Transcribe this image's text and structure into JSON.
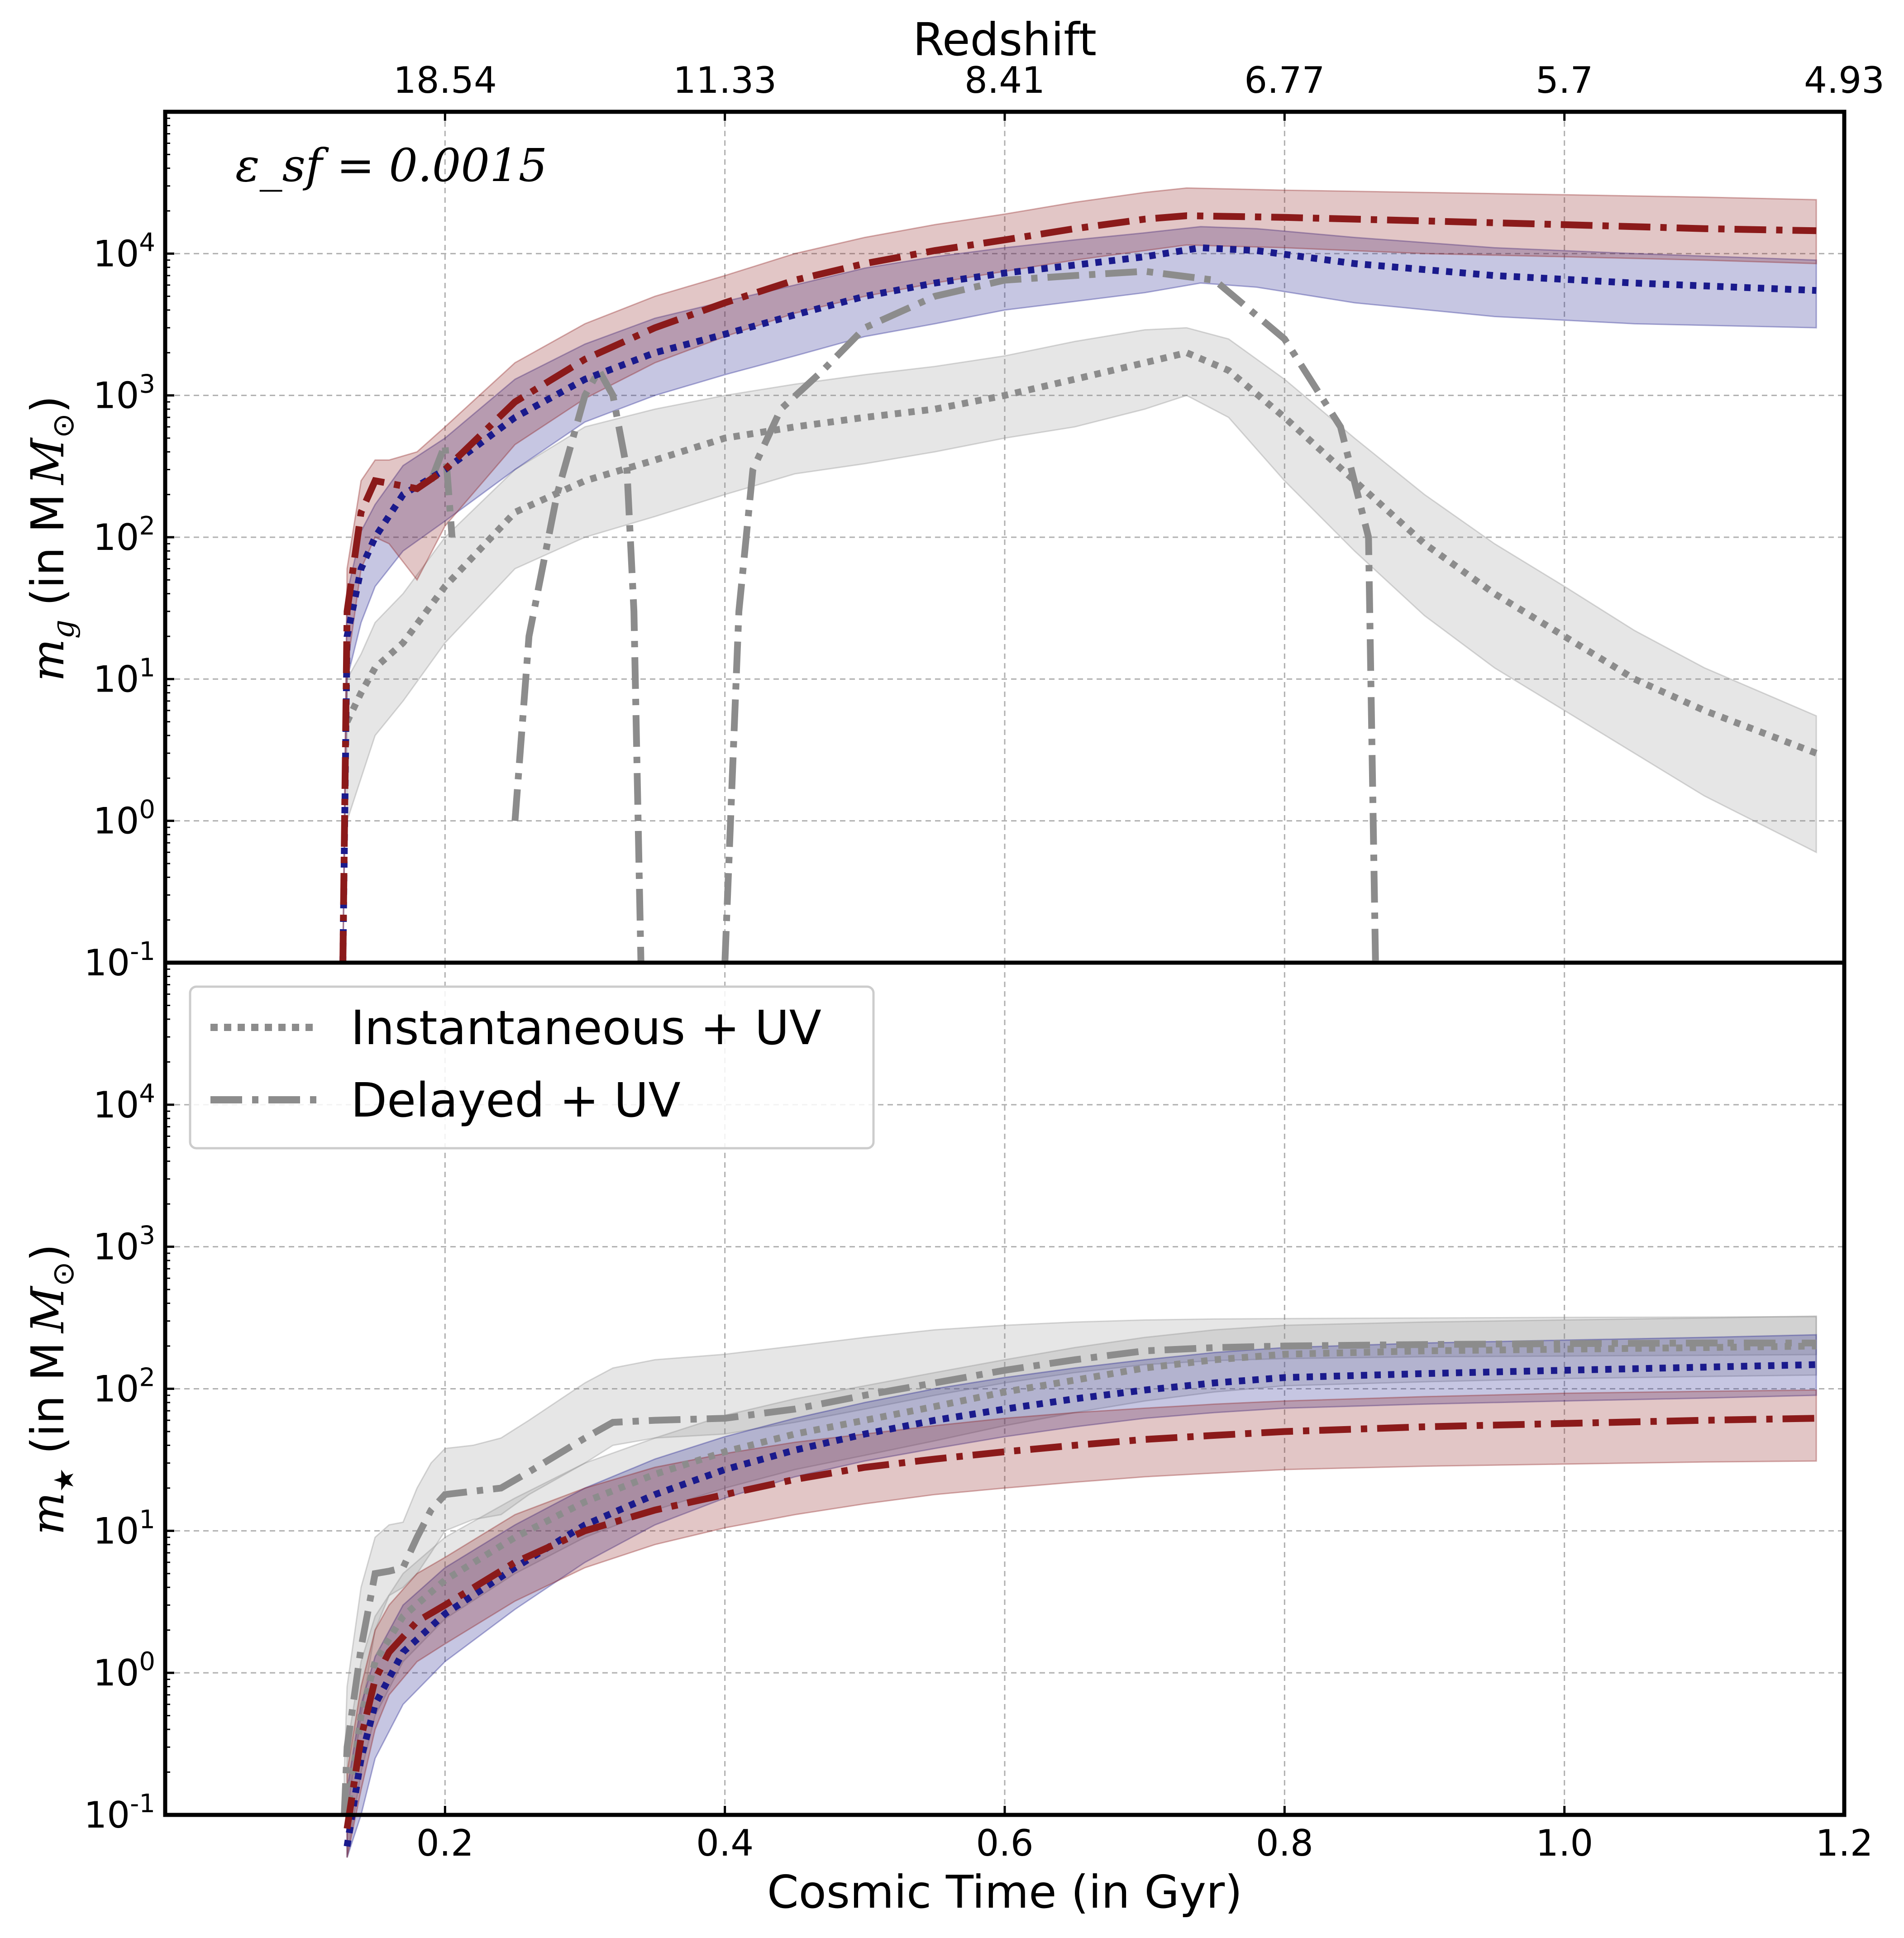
{
  "chart_data": {
    "type": "line",
    "annotation": "ε_sf = 0.0015",
    "xlabel": "Cosmic Time (in Gyr)",
    "top_xlabel": "Redshift",
    "xlim": [
      0.0,
      1.2
    ],
    "x_ticks": [
      0.2,
      0.4,
      0.6,
      0.8,
      1.0,
      1.2
    ],
    "x_tick_labels": [
      "0.2",
      "0.4",
      "0.6",
      "0.8",
      "1.0",
      "1.2"
    ],
    "top_ticks": [
      0.2,
      0.4,
      0.6,
      0.8,
      1.0,
      1.2
    ],
    "top_tick_labels": [
      "18.54",
      "11.33",
      "8.41",
      "6.77",
      "5.7",
      "4.93"
    ],
    "ylim": [
      0.1,
      100000
    ],
    "y_scale": "log",
    "y_ticks": [
      0.1,
      1,
      10,
      100,
      1000,
      10000
    ],
    "y_tick_base": "10",
    "y_tick_exponents": [
      "-1",
      "0",
      "1",
      "2",
      "3",
      "4"
    ],
    "legend": [
      {
        "label": "Instantaneous + UV",
        "style": "dotted",
        "color": "#8c8c8c"
      },
      {
        "label": "Delayed + UV",
        "style": "dashdot",
        "color": "#8c8c8c"
      }
    ],
    "panels": [
      {
        "id": "gas",
        "ylabel_symbol": "m",
        "ylabel_sub": "g",
        "ylabel_unit": "(in M",
        "ylabel_unit_sub": "⊙",
        "ylabel_close": ")",
        "series": [
          {
            "name": "Instantaneous + UV (grey)",
            "color": "#8c8c8c",
            "style": "dotted",
            "x": [
              0.13,
              0.14,
              0.15,
              0.17,
              0.2,
              0.25,
              0.3,
              0.35,
              0.4,
              0.45,
              0.5,
              0.55,
              0.6,
              0.65,
              0.7,
              0.73,
              0.76,
              0.8,
              0.85,
              0.9,
              0.95,
              1.0,
              1.05,
              1.1,
              1.18
            ],
            "y": [
              5,
              8,
              12,
              18,
              45,
              150,
              250,
              350,
              500,
              600,
              700,
              800,
              1000,
              1300,
              1700,
              2000,
              1500,
              700,
              250,
              90,
              40,
              20,
              10,
              6,
              3
            ],
            "lo": [
              1,
              2,
              4,
              7,
              18,
              60,
              100,
              140,
              200,
              280,
              330,
              400,
              500,
              600,
              800,
              1000,
              700,
              250,
              80,
              28,
              12,
              6,
              3,
              1.5,
              0.6
            ],
            "hi": [
              10,
              15,
              25,
              40,
              100,
              300,
              600,
              800,
              1000,
              1200,
              1400,
              1600,
              1900,
              2400,
              2900,
              3000,
              2500,
              1300,
              500,
              200,
              90,
              45,
              22,
              12,
              5.5
            ]
          },
          {
            "name": "Delayed + UV (grey)",
            "color": "#8c8c8c",
            "style": "dashdot",
            "x": [
              0.13,
              0.145,
              0.15,
              0.16,
              0.165,
              0.17,
              0.18,
              0.19,
              0.2,
              0.205,
              0.21,
              0.22,
              0.23,
              0.24,
              0.245,
              0.25,
              0.26,
              0.28,
              0.3,
              0.31,
              0.32,
              0.33,
              0.335,
              0.34,
              0.35,
              0.38,
              0.395,
              0.4,
              0.41,
              0.42,
              0.44,
              0.47,
              0.5,
              0.55,
              0.6,
              0.65,
              0.7,
              0.75,
              0.8,
              0.84,
              0.86,
              0.865,
              0.87,
              0.9
            ],
            "y": [
              null,
              null,
              20,
              null,
              null,
              80,
              null,
              250,
              450,
              100,
              null,
              null,
              null,
              null,
              null,
              1,
              20,
              200,
              1000,
              1500,
              1000,
              300,
              30,
              0.1,
              null,
              null,
              null,
              0.1,
              30,
              300,
              800,
              1500,
              3000,
              5000,
              6500,
              7000,
              7500,
              6500,
              2500,
              600,
              100,
              0.1,
              null,
              null
            ],
            "lo": [
              null,
              null,
              null,
              null,
              null,
              null,
              null,
              null,
              null,
              null,
              null,
              null,
              null,
              null,
              null,
              null,
              null,
              null,
              null,
              null,
              null,
              null,
              null,
              null,
              null,
              null,
              null,
              null,
              null,
              null,
              null,
              null,
              null,
              null,
              null,
              null,
              null,
              null,
              null,
              null,
              null,
              null,
              null,
              null
            ],
            "hi": [
              null,
              null,
              null,
              null,
              null,
              null,
              null,
              null,
              null,
              null,
              null,
              null,
              null,
              null,
              null,
              null,
              null,
              null,
              null,
              null,
              null,
              null,
              null,
              null,
              null,
              null,
              null,
              null,
              null,
              null,
              null,
              null,
              null,
              null,
              null,
              null,
              null,
              null,
              null,
              null,
              null,
              null,
              null,
              null
            ]
          },
          {
            "name": "Instantaneous (blue)",
            "color": "#1a1a8c",
            "style": "dotted",
            "x": [
              0.127,
              0.13,
              0.14,
              0.15,
              0.17,
              0.2,
              0.25,
              0.3,
              0.35,
              0.4,
              0.45,
              0.5,
              0.55,
              0.6,
              0.65,
              0.7,
              0.74,
              0.78,
              0.85,
              0.95,
              1.05,
              1.18
            ],
            "y": [
              0.1,
              20,
              60,
              100,
              200,
              300,
              700,
              1300,
              2000,
              2700,
              3700,
              5000,
              6200,
              7300,
              8300,
              9500,
              11000,
              10500,
              8500,
              7000,
              6200,
              5500
            ],
            "lo": [
              0.1,
              10,
              25,
              45,
              80,
              130,
              300,
              650,
              1000,
              1400,
              1900,
              2600,
              3200,
              4000,
              4600,
              5300,
              6200,
              5800,
              4500,
              3600,
              3200,
              3000
            ],
            "hi": [
              0.1,
              40,
              110,
              170,
              320,
              500,
              1300,
              2300,
              3500,
              4600,
              6000,
              7900,
              9500,
              11000,
              12500,
              14000,
              15500,
              15000,
              13000,
              11000,
              10000,
              9000
            ]
          },
          {
            "name": "Delayed (red)",
            "color": "#8b1a1a",
            "style": "dashdot",
            "x": [
              0.127,
              0.13,
              0.14,
              0.15,
              0.16,
              0.18,
              0.2,
              0.25,
              0.3,
              0.35,
              0.4,
              0.45,
              0.5,
              0.55,
              0.6,
              0.65,
              0.7,
              0.73,
              0.8,
              0.9,
              1.0,
              1.1,
              1.18
            ],
            "y": [
              0.1,
              30,
              150,
              250,
              240,
              220,
              300,
              900,
              1800,
              3000,
              4500,
              6500,
              8500,
              10500,
              12500,
              15000,
              17500,
              18500,
              18000,
              17000,
              16000,
              15000,
              14500
            ],
            "lo": [
              0.1,
              12,
              60,
              100,
              90,
              50,
              120,
              450,
              950,
              1700,
              2600,
              3800,
              5000,
              6200,
              7500,
              9000,
              10500,
              11500,
              11000,
              10000,
              9500,
              9000,
              8500
            ],
            "hi": [
              0.1,
              60,
              250,
              350,
              350,
              400,
              600,
              1700,
              3200,
              5000,
              7000,
              10000,
              13000,
              16000,
              19000,
              23000,
              27000,
              29000,
              28000,
              27000,
              26000,
              25000,
              24000
            ]
          }
        ]
      },
      {
        "id": "stellar",
        "ylabel_symbol": "m",
        "ylabel_sub": "★",
        "ylabel_unit": "(in M",
        "ylabel_unit_sub": "⊙",
        "ylabel_close": ")",
        "series": [
          {
            "name": "Instantaneous + UV (grey)",
            "color": "#8c8c8c",
            "style": "dotted",
            "x": [
              0.13,
              0.14,
              0.15,
              0.17,
              0.2,
              0.25,
              0.3,
              0.35,
              0.4,
              0.45,
              0.5,
              0.55,
              0.6,
              0.65,
              0.7,
              0.75,
              0.8,
              0.9,
              1.0,
              1.1,
              1.18
            ],
            "y": [
              0.1,
              0.5,
              1.2,
              2.5,
              4.5,
              9,
              16,
              25,
              36,
              48,
              60,
              75,
              95,
              115,
              140,
              160,
              175,
              185,
              190,
              195,
              200
            ],
            "lo": [
              0.05,
              0.2,
              0.5,
              1.2,
              2.4,
              5,
              9,
              14,
              20,
              27,
              34,
              43,
              55,
              68,
              82,
              95,
              105,
              112,
              118,
              122,
              125
            ],
            "hi": [
              0.3,
              1.2,
              2.5,
              5,
              9,
              17,
              30,
              45,
              65,
              85,
              105,
              130,
              160,
              195,
              230,
              260,
              280,
              295,
              305,
              315,
              325
            ]
          },
          {
            "name": "Delayed + UV (grey)",
            "color": "#8c8c8c",
            "style": "dashdot",
            "x": [
              0.128,
              0.13,
              0.14,
              0.15,
              0.16,
              0.17,
              0.18,
              0.19,
              0.2,
              0.22,
              0.24,
              0.26,
              0.3,
              0.32,
              0.35,
              0.4,
              0.45,
              0.5,
              0.55,
              0.6,
              0.65,
              0.7,
              0.75,
              0.8,
              0.9,
              1.0,
              1.1,
              1.18
            ],
            "y": [
              0.1,
              0.3,
              1.5,
              5,
              5.2,
              5.5,
              9,
              14,
              18,
              19,
              20,
              26,
              45,
              58,
              60,
              62,
              72,
              90,
              110,
              135,
              160,
              185,
              195,
              200,
              205,
              208,
              210,
              210
            ],
            "lo": [
              0.1,
              0.1,
              0.5,
              2,
              3.5,
              4,
              5,
              7,
              10,
              12,
              13,
              18,
              30,
              40,
              45,
              48,
              58,
              72,
              90,
              110,
              130,
              148,
              158,
              163,
              168,
              170,
              172,
              174
            ],
            "hi": [
              0.2,
              0.8,
              4,
              9,
              11,
              11.5,
              20,
              30,
              38,
              40,
              45,
              60,
              110,
              140,
              160,
              175,
              200,
              230,
              260,
              280,
              295,
              305,
              310,
              312,
              315,
              318,
              320,
              322
            ]
          },
          {
            "name": "Instantaneous (blue)",
            "color": "#1a1a8c",
            "style": "dotted",
            "x": [
              0.13,
              0.14,
              0.15,
              0.17,
              0.2,
              0.25,
              0.3,
              0.35,
              0.4,
              0.45,
              0.5,
              0.55,
              0.6,
              0.65,
              0.7,
              0.75,
              0.8,
              0.9,
              1.0,
              1.1,
              1.18
            ],
            "y": [
              0.06,
              0.25,
              0.6,
              1.4,
              2.6,
              5.5,
              11,
              18,
              27,
              37,
              48,
              60,
              72,
              85,
              98,
              110,
              120,
              128,
              135,
              142,
              148
            ],
            "lo": [
              0.05,
              0.1,
              0.25,
              0.6,
              1.2,
              2.8,
              6,
              11,
              17,
              24,
              31,
              38,
              46,
              54,
              62,
              68,
              73,
              78,
              82,
              86,
              90
            ],
            "hi": [
              0.15,
              0.6,
              1.3,
              3,
              5.5,
              11,
              20,
              32,
              46,
              62,
              80,
              100,
              120,
              140,
              160,
              180,
              195,
              210,
              220,
              230,
              240
            ]
          },
          {
            "name": "Delayed (red)",
            "color": "#8b1a1a",
            "style": "dashdot",
            "x": [
              0.13,
              0.14,
              0.15,
              0.16,
              0.18,
              0.2,
              0.25,
              0.3,
              0.35,
              0.4,
              0.45,
              0.5,
              0.55,
              0.6,
              0.65,
              0.7,
              0.75,
              0.8,
              0.9,
              1.0,
              1.1,
              1.18
            ],
            "y": [
              0.08,
              0.35,
              0.9,
              1.4,
              2.3,
              3,
              6,
              10,
              14,
              18,
              23,
              28,
              32,
              36,
              40,
              44,
              47,
              50,
              54,
              57,
              60,
              62
            ],
            "lo": [
              0.05,
              0.15,
              0.4,
              0.7,
              1.2,
              1.6,
              3.2,
              5.5,
              8,
              10.5,
              13,
              15.5,
              18,
              20,
              22,
              24,
              25.5,
              27,
              28.5,
              29.5,
              30.5,
              31
            ],
            "hi": [
              0.2,
              0.8,
              2,
              3,
              5,
              6.5,
              13,
              20,
              28,
              35,
              42,
              48,
              55,
              62,
              68,
              73,
              78,
              82,
              88,
              93,
              96,
              98
            ]
          }
        ]
      }
    ]
  }
}
